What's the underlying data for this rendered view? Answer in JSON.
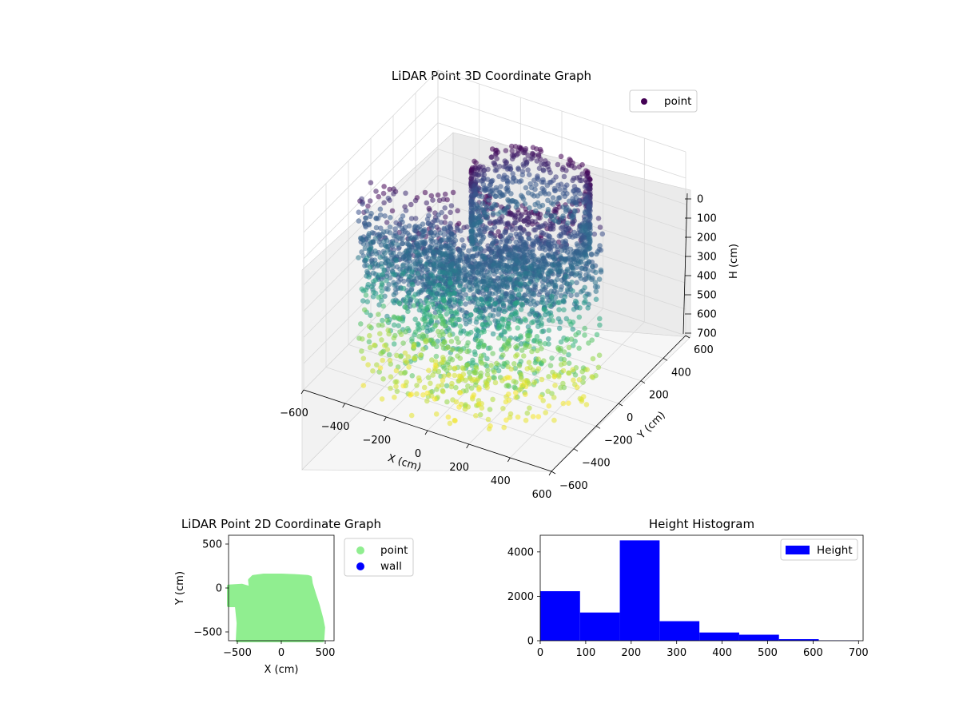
{
  "colors": {
    "viridis_dark": "#440154",
    "viridis_blue": "#31688e",
    "viridis_teal": "#21918c",
    "viridis_green": "#35b779",
    "viridis_yellow": "#fde725",
    "point_2d": "#90ee90",
    "wall_2d": "#0000ff",
    "histogram_bar": "#0000ff",
    "pane": "#f2f2f2",
    "grid": "#d9d9d9"
  },
  "chart_data": [
    {
      "type": "scatter",
      "projection": "3d",
      "title": "LiDAR Point 3D Coordinate Graph",
      "xlabel": "X (cm)",
      "ylabel": "Y (cm)",
      "zlabel": "H (cm)",
      "xlim": [
        -600,
        600
      ],
      "ylim": [
        -600,
        600
      ],
      "zlim": [
        700,
        0
      ],
      "z_inverted": true,
      "xticks": [
        "−600",
        "−400",
        "−200",
        "0",
        "200",
        "400",
        "600"
      ],
      "yticks": [
        "−600",
        "−400",
        "−200",
        "0",
        "200",
        "400",
        "600"
      ],
      "zticks": [
        "0",
        "100",
        "200",
        "300",
        "400",
        "500",
        "600",
        "700"
      ],
      "colormap": "viridis (by height)",
      "legend": {
        "position": "upper-right",
        "entries": [
          "point"
        ]
      },
      "grid": true,
      "series": [
        {
          "name": "point",
          "note": "dense cloud of points approximating a wedge-shaped room footprint; x from about -550 to 500, y from about -550 to 130, height 0 to 700"
        }
      ]
    },
    {
      "type": "scatter",
      "title": "LiDAR Point 2D Coordinate Graph",
      "xlabel": "X (cm)",
      "ylabel": "Y (cm)",
      "xlim": [
        -600,
        600
      ],
      "ylim": [
        -600,
        600
      ],
      "xticks": [
        "−500",
        "0",
        "500"
      ],
      "yticks": [
        "−500",
        "0",
        "500"
      ],
      "legend": {
        "position": "outside-right",
        "entries": [
          "point",
          "wall"
        ]
      },
      "series": [
        {
          "name": "point",
          "color": "#90ee90",
          "footprint": [
            [
              -600,
              20
            ],
            [
              -450,
              30
            ],
            [
              -380,
              10
            ],
            [
              -350,
              -10
            ],
            [
              -350,
              0
            ],
            [
              -360,
              90
            ],
            [
              -320,
              130
            ],
            [
              -200,
              145
            ],
            [
              0,
              145
            ],
            [
              150,
              140
            ],
            [
              300,
              130
            ],
            [
              330,
              120
            ],
            [
              340,
              50
            ],
            [
              380,
              -80
            ],
            [
              420,
              -200
            ],
            [
              460,
              -350
            ],
            [
              480,
              -450
            ],
            [
              470,
              -600
            ],
            [
              -500,
              -600
            ],
            [
              -490,
              -400
            ],
            [
              -510,
              -200
            ],
            [
              -600,
              -200
            ]
          ]
        },
        {
          "name": "wall",
          "color": "#0000ff",
          "points": []
        }
      ]
    },
    {
      "type": "bar",
      "subtype": "histogram",
      "title": "Height Histogram",
      "xlabel": "",
      "ylabel": "",
      "xlim": [
        0,
        710
      ],
      "ylim": [
        0,
        4750
      ],
      "xticks": [
        "0",
        "100",
        "200",
        "300",
        "400",
        "500",
        "600",
        "700"
      ],
      "yticks": [
        "0",
        "2000",
        "4000"
      ],
      "bin_edges": [
        0,
        87.5,
        175,
        262.5,
        350,
        437.5,
        525,
        612.5,
        700
      ],
      "values": [
        2230,
        1270,
        4520,
        880,
        370,
        270,
        70,
        15
      ],
      "legend": {
        "position": "upper-right",
        "entries": [
          "Height"
        ]
      },
      "series": [
        {
          "name": "Height",
          "color": "#0000ff"
        }
      ]
    }
  ]
}
